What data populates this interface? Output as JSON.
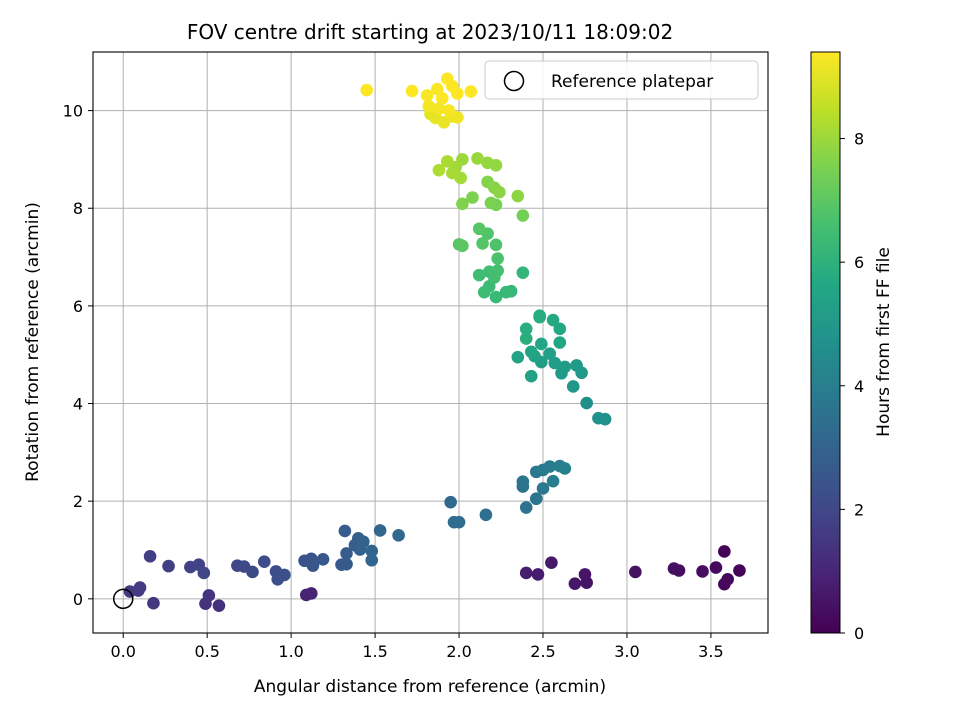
{
  "chart_data": {
    "type": "scatter",
    "title": "FOV centre drift starting at 2023/10/11 18:09:02",
    "xlabel": "Angular distance from reference (arcmin)",
    "ylabel": "Rotation from reference (arcmin)",
    "xlim": [
      -0.18,
      3.84
    ],
    "ylim": [
      -0.7,
      11.2
    ],
    "x_ticks": [
      "0.0",
      "0.5",
      "1.0",
      "1.5",
      "2.0",
      "2.5",
      "3.0",
      "3.5"
    ],
    "x_tick_values": [
      0,
      0.5,
      1.0,
      1.5,
      2.0,
      2.5,
      3.0,
      3.5
    ],
    "y_ticks": [
      "0",
      "2",
      "4",
      "6",
      "8",
      "10"
    ],
    "y_tick_values": [
      0,
      2,
      4,
      6,
      8,
      10
    ],
    "grid": true,
    "legend_position": "top-right",
    "reference": {
      "label": "Reference platepar",
      "x": 0,
      "y": 0
    },
    "colorbar": {
      "label": "Hours from first FF file",
      "colormap": "viridis",
      "min": 0,
      "max": 9.4,
      "ticks": [
        "0",
        "2",
        "4",
        "6",
        "8"
      ],
      "tick_values": [
        0,
        2,
        4,
        6,
        8
      ]
    },
    "points": [
      [
        3.58,
        0.97,
        0.05
      ],
      [
        3.67,
        0.58,
        0.1
      ],
      [
        3.58,
        0.3,
        0.15
      ],
      [
        3.6,
        0.4,
        0.2
      ],
      [
        3.53,
        0.64,
        0.25
      ],
      [
        3.45,
        0.56,
        0.3
      ],
      [
        3.31,
        0.58,
        0.35
      ],
      [
        3.28,
        0.62,
        0.4
      ],
      [
        3.05,
        0.55,
        0.45
      ],
      [
        2.76,
        0.33,
        0.5
      ],
      [
        2.75,
        0.5,
        0.55
      ],
      [
        2.69,
        0.31,
        0.6
      ],
      [
        2.55,
        0.74,
        0.65
      ],
      [
        2.47,
        0.5,
        0.7
      ],
      [
        2.4,
        0.53,
        0.75
      ],
      [
        1.12,
        0.11,
        0.9
      ],
      [
        1.09,
        0.08,
        0.95
      ],
      [
        0.57,
        -0.14,
        1.3
      ],
      [
        0.49,
        -0.1,
        1.35
      ],
      [
        0.51,
        0.07,
        1.4
      ],
      [
        0.18,
        -0.09,
        1.5
      ],
      [
        0.04,
        0.15,
        1.55
      ],
      [
        0.09,
        0.17,
        1.6
      ],
      [
        0.1,
        0.23,
        1.65
      ],
      [
        0.16,
        0.87,
        1.7
      ],
      [
        0.27,
        0.67,
        1.75
      ],
      [
        0.4,
        0.65,
        1.8
      ],
      [
        0.45,
        0.7,
        1.85
      ],
      [
        0.48,
        0.53,
        1.9
      ],
      [
        0.68,
        0.68,
        2.0
      ],
      [
        0.72,
        0.66,
        2.05
      ],
      [
        0.77,
        0.55,
        2.1
      ],
      [
        0.84,
        0.76,
        2.15
      ],
      [
        0.91,
        0.56,
        2.2
      ],
      [
        0.92,
        0.4,
        2.25
      ],
      [
        0.96,
        0.49,
        2.3
      ],
      [
        1.08,
        0.78,
        2.4
      ],
      [
        1.12,
        0.82,
        2.45
      ],
      [
        1.13,
        0.68,
        2.5
      ],
      [
        1.19,
        0.81,
        2.55
      ],
      [
        1.3,
        0.7,
        2.6
      ],
      [
        1.33,
        0.71,
        2.65
      ],
      [
        1.33,
        0.93,
        2.7
      ],
      [
        1.32,
        1.39,
        2.75
      ],
      [
        1.38,
        1.1,
        2.8
      ],
      [
        1.4,
        1.24,
        2.85
      ],
      [
        1.41,
        1.01,
        2.9
      ],
      [
        1.43,
        1.17,
        2.95
      ],
      [
        1.48,
        0.98,
        3.0
      ],
      [
        1.48,
        0.79,
        3.05
      ],
      [
        1.53,
        1.4,
        3.1
      ],
      [
        1.64,
        1.3,
        3.15
      ],
      [
        1.95,
        1.98,
        3.25
      ],
      [
        1.97,
        1.57,
        3.3
      ],
      [
        2.0,
        1.57,
        3.35
      ],
      [
        2.16,
        1.72,
        3.4
      ],
      [
        2.4,
        1.87,
        3.5
      ],
      [
        2.38,
        2.3,
        3.6
      ],
      [
        2.38,
        2.4,
        3.65
      ],
      [
        2.46,
        2.05,
        3.7
      ],
      [
        2.46,
        2.6,
        3.75
      ],
      [
        2.5,
        2.26,
        3.8
      ],
      [
        2.5,
        2.64,
        3.85
      ],
      [
        2.54,
        2.71,
        3.9
      ],
      [
        2.56,
        2.41,
        3.95
      ],
      [
        2.6,
        2.72,
        4.0
      ],
      [
        2.63,
        2.67,
        4.1
      ],
      [
        2.76,
        4.01,
        4.6
      ],
      [
        2.83,
        3.7,
        4.7
      ],
      [
        2.87,
        3.68,
        4.75
      ],
      [
        2.68,
        4.35,
        4.9
      ],
      [
        2.73,
        4.63,
        5.0
      ],
      [
        2.7,
        4.78,
        5.05
      ],
      [
        2.61,
        4.62,
        5.1
      ],
      [
        2.63,
        4.75,
        5.15
      ],
      [
        2.57,
        4.83,
        5.2
      ],
      [
        2.49,
        4.85,
        5.25
      ],
      [
        2.54,
        5.02,
        5.3
      ],
      [
        2.43,
        4.56,
        5.35
      ],
      [
        2.45,
        4.97,
        5.4
      ],
      [
        2.35,
        4.95,
        5.45
      ],
      [
        2.43,
        5.06,
        5.5
      ],
      [
        2.49,
        5.22,
        5.55
      ],
      [
        2.6,
        5.25,
        5.6
      ],
      [
        2.6,
        5.53,
        5.65
      ],
      [
        2.56,
        5.71,
        5.7
      ],
      [
        2.48,
        5.8,
        5.75
      ],
      [
        2.48,
        5.77,
        5.8
      ],
      [
        2.4,
        5.53,
        5.85
      ],
      [
        2.4,
        5.33,
        5.9
      ],
      [
        2.38,
        6.68,
        6.15
      ],
      [
        2.31,
        6.3,
        6.2
      ],
      [
        2.28,
        6.28,
        6.25
      ],
      [
        2.22,
        6.18,
        6.3
      ],
      [
        2.18,
        6.4,
        6.35
      ],
      [
        2.15,
        6.28,
        6.4
      ],
      [
        2.12,
        6.63,
        6.45
      ],
      [
        2.18,
        6.7,
        6.5
      ],
      [
        2.21,
        6.58,
        6.55
      ],
      [
        2.23,
        6.72,
        6.6
      ],
      [
        2.23,
        6.97,
        6.7
      ],
      [
        2.22,
        7.25,
        6.75
      ],
      [
        2.17,
        7.48,
        6.8
      ],
      [
        2.14,
        7.28,
        6.85
      ],
      [
        2.12,
        7.58,
        6.9
      ],
      [
        2.0,
        7.26,
        6.95
      ],
      [
        2.02,
        7.23,
        7.0
      ],
      [
        2.38,
        7.85,
        7.4
      ],
      [
        2.22,
        8.07,
        7.45
      ],
      [
        2.19,
        8.11,
        7.5
      ],
      [
        2.08,
        8.22,
        7.55
      ],
      [
        2.02,
        8.09,
        7.6
      ],
      [
        2.17,
        8.54,
        7.65
      ],
      [
        2.21,
        8.42,
        7.7
      ],
      [
        2.24,
        8.33,
        7.75
      ],
      [
        2.35,
        8.25,
        7.8
      ],
      [
        2.22,
        8.88,
        7.85
      ],
      [
        2.17,
        8.93,
        7.9
      ],
      [
        2.11,
        9.02,
        7.95
      ],
      [
        2.02,
        9.0,
        8.0
      ],
      [
        1.98,
        8.84,
        8.05
      ],
      [
        2.01,
        8.62,
        8.1
      ],
      [
        1.96,
        8.72,
        8.15
      ],
      [
        1.93,
        8.96,
        8.2
      ],
      [
        1.88,
        8.78,
        8.25
      ],
      [
        1.83,
        9.93,
        9.0
      ],
      [
        1.86,
        9.85,
        9.05
      ],
      [
        1.91,
        9.76,
        9.1
      ],
      [
        1.96,
        9.88,
        9.15
      ],
      [
        1.99,
        9.86,
        9.2
      ],
      [
        1.82,
        10.09,
        9.25
      ],
      [
        1.88,
        10.04,
        9.3
      ],
      [
        1.94,
        10.0,
        9.32
      ],
      [
        1.81,
        10.31,
        9.34
      ],
      [
        1.87,
        10.44,
        9.36
      ],
      [
        1.9,
        10.25,
        9.38
      ],
      [
        1.93,
        10.65,
        9.4
      ],
      [
        1.96,
        10.5,
        9.4
      ],
      [
        1.99,
        10.35,
        9.4
      ],
      [
        2.07,
        10.39,
        9.4
      ],
      [
        1.72,
        10.4,
        9.4
      ],
      [
        1.45,
        10.42,
        9.4
      ]
    ]
  }
}
